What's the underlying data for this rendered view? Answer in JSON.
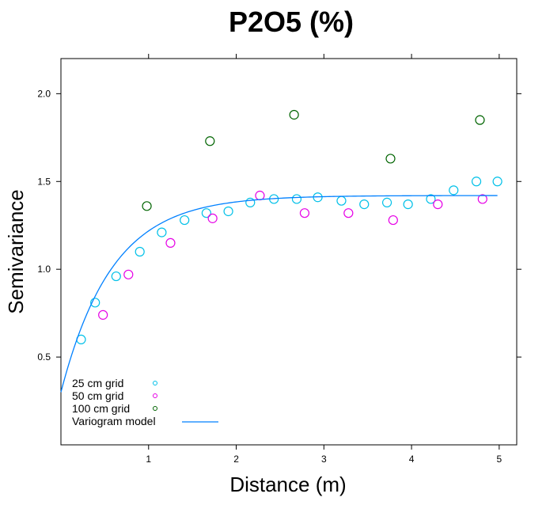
{
  "chart_data": {
    "type": "scatter",
    "title": "P2O5 (%)",
    "xlabel": "Distance (m)",
    "ylabel": "Semivariance",
    "xlim": [
      0,
      5.2
    ],
    "ylim": [
      0,
      2.2
    ],
    "xticks": [
      1,
      2,
      3,
      4,
      5
    ],
    "xtick_labels": [
      "1",
      "2",
      "3",
      "4",
      "5"
    ],
    "yticks": [
      0.5,
      1.0,
      1.5,
      2.0
    ],
    "ytick_labels": [
      "0.5",
      "1.0",
      "1.5",
      "2.0"
    ],
    "grid": false,
    "legend_position": "bottom-left",
    "series": [
      {
        "name": "25 cm grid",
        "color": "#00c0e8",
        "points": [
          [
            0.23,
            0.6
          ],
          [
            0.39,
            0.81
          ],
          [
            0.63,
            0.96
          ],
          [
            0.9,
            1.1
          ],
          [
            1.15,
            1.21
          ],
          [
            1.41,
            1.28
          ],
          [
            1.66,
            1.32
          ],
          [
            1.91,
            1.33
          ],
          [
            2.16,
            1.38
          ],
          [
            2.43,
            1.4
          ],
          [
            2.69,
            1.4
          ],
          [
            2.93,
            1.41
          ],
          [
            3.2,
            1.39
          ],
          [
            3.46,
            1.37
          ],
          [
            3.72,
            1.38
          ],
          [
            3.96,
            1.37
          ],
          [
            4.22,
            1.4
          ],
          [
            4.48,
            1.45
          ],
          [
            4.74,
            1.5
          ],
          [
            4.98,
            1.5
          ]
        ]
      },
      {
        "name": "50 cm grid",
        "color": "#e600e6",
        "points": [
          [
            0.48,
            0.74
          ],
          [
            0.77,
            0.97
          ],
          [
            1.25,
            1.15
          ],
          [
            1.73,
            1.29
          ],
          [
            2.27,
            1.42
          ],
          [
            2.78,
            1.32
          ],
          [
            3.28,
            1.32
          ],
          [
            3.79,
            1.28
          ],
          [
            4.3,
            1.37
          ],
          [
            4.81,
            1.4
          ]
        ]
      },
      {
        "name": "100 cm grid",
        "color": "#006400",
        "points": [
          [
            0.98,
            1.36
          ],
          [
            1.7,
            1.73
          ],
          [
            2.66,
            1.88
          ],
          [
            3.76,
            1.63
          ],
          [
            4.78,
            1.85
          ]
        ]
      }
    ],
    "model": {
      "name": "Variogram model",
      "color": "#0080ff",
      "nugget": 0.3,
      "sill": 1.42,
      "range": 1.75
    }
  }
}
